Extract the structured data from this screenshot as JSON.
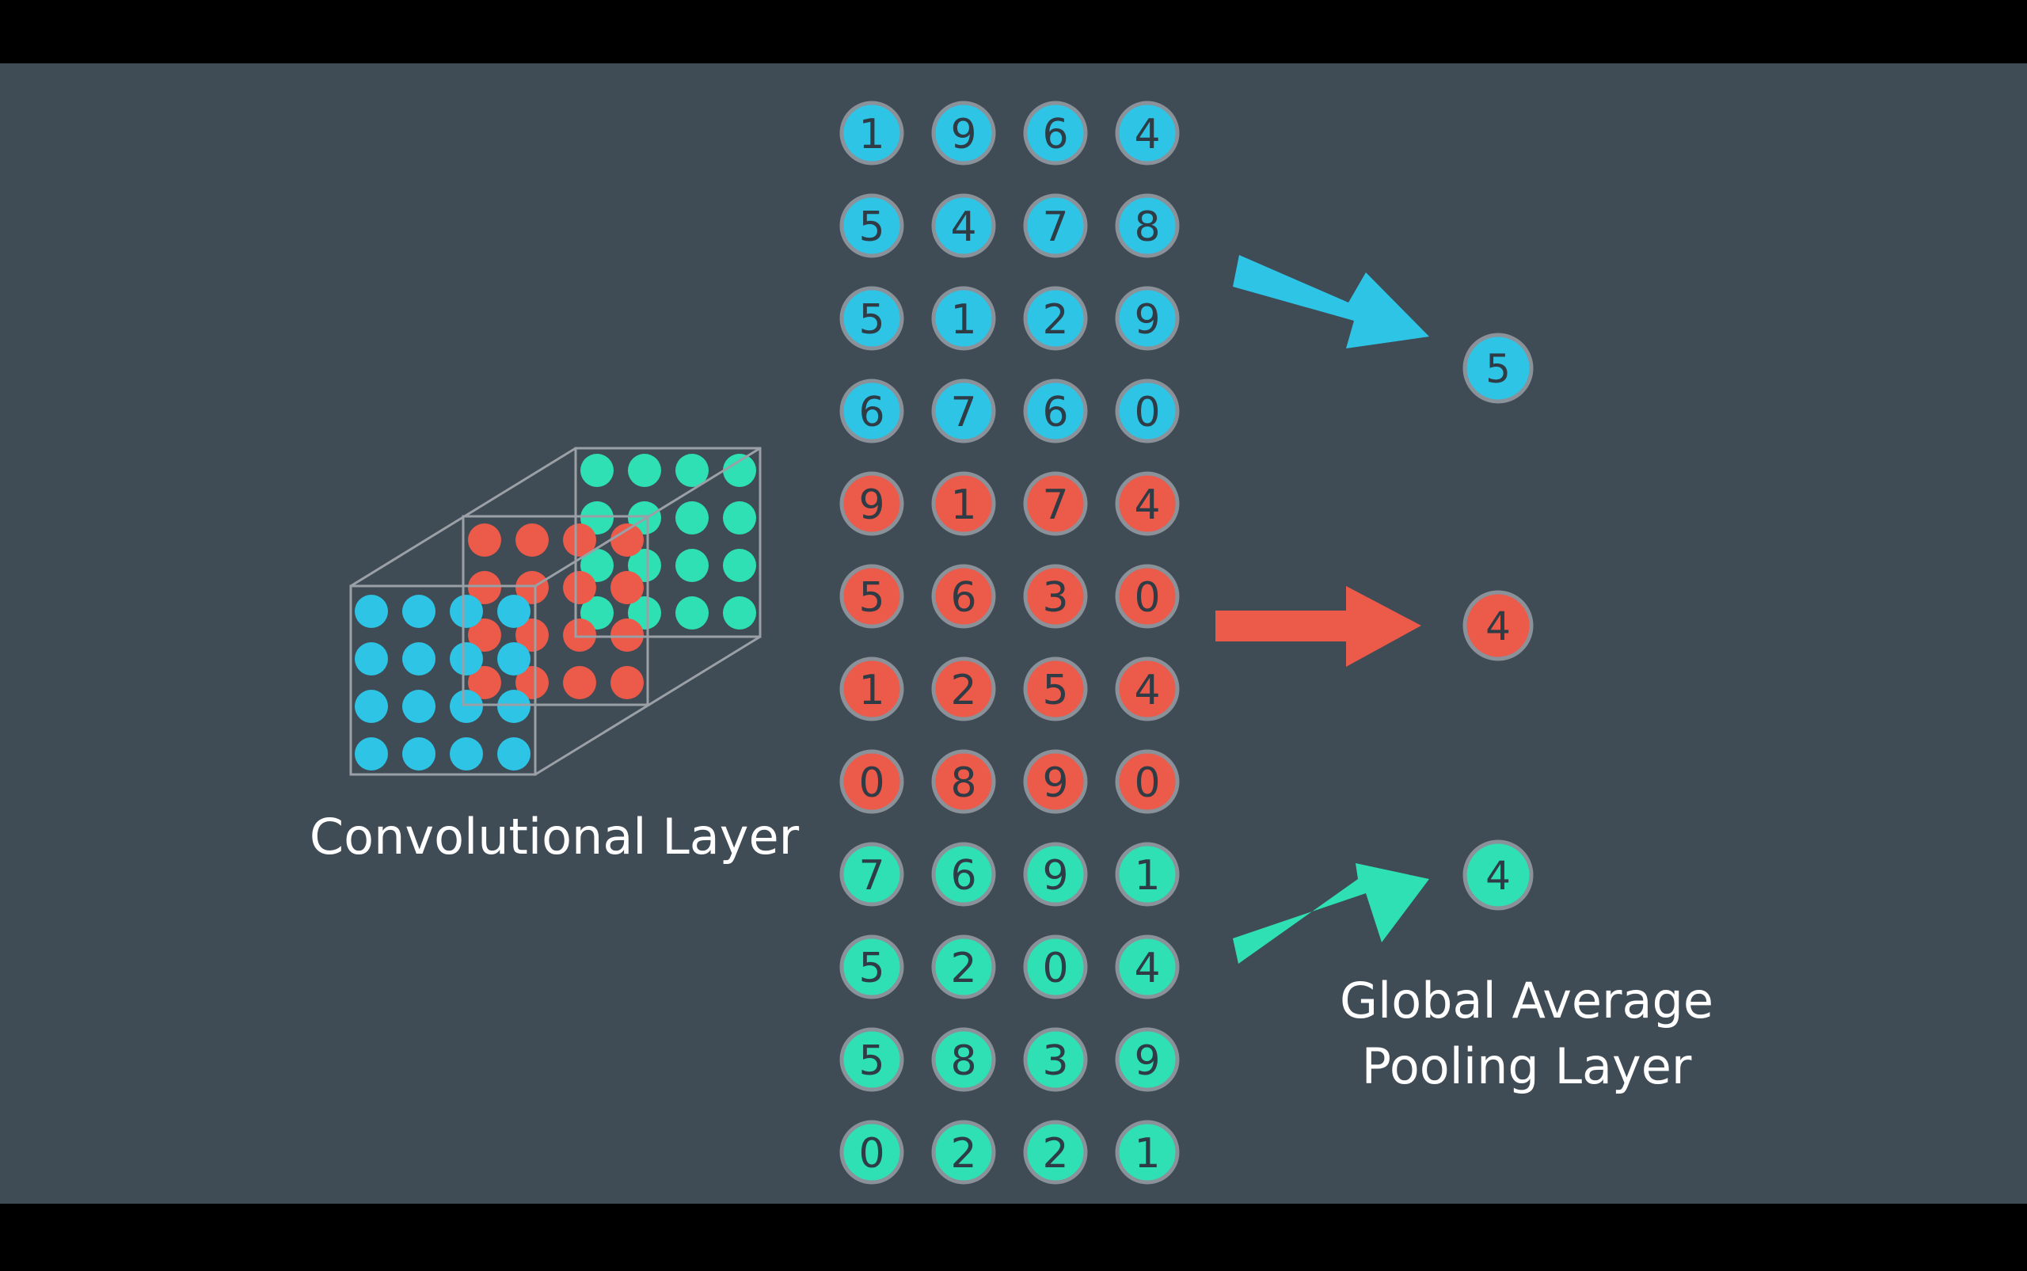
{
  "colors": {
    "background": "#3f4b55",
    "letterbox": "#000000",
    "blue": "#2ec4e6",
    "red": "#ec5a4a",
    "green": "#2ee0b4",
    "circle_stroke": "#8a9199",
    "digit": "#2f3b45",
    "cube_line": "#9aa0a6",
    "label": "#ffffff"
  },
  "conv_label": "Convolutional Layer",
  "pool_label": {
    "line1": "Global Average",
    "line2": "Pooling Layer"
  },
  "feature_maps": [
    {
      "color": "blue",
      "rows": [
        [
          1,
          9,
          6,
          4
        ],
        [
          5,
          4,
          7,
          8
        ],
        [
          5,
          1,
          2,
          9
        ],
        [
          6,
          7,
          6,
          0
        ]
      ],
      "pooled": 5
    },
    {
      "color": "red",
      "rows": [
        [
          9,
          1,
          7,
          4
        ],
        [
          5,
          6,
          3,
          0
        ],
        [
          1,
          2,
          5,
          4
        ],
        [
          0,
          8,
          9,
          0
        ]
      ],
      "pooled": 4
    },
    {
      "color": "green",
      "rows": [
        [
          7,
          6,
          9,
          1
        ],
        [
          5,
          2,
          0,
          4
        ],
        [
          5,
          8,
          3,
          9
        ],
        [
          0,
          2,
          2,
          1
        ]
      ],
      "pooled": 4
    }
  ]
}
